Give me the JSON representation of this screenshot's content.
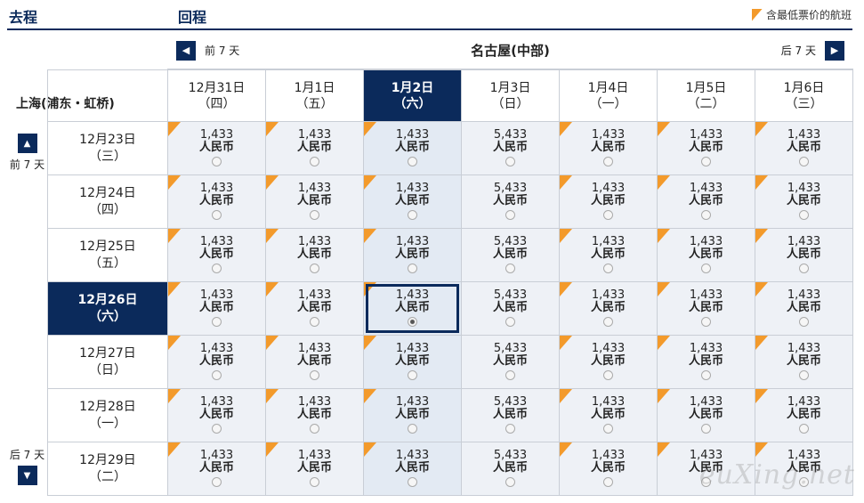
{
  "header": {
    "outbound": "去程",
    "return": "回程",
    "legend": "含最低票价的航班"
  },
  "nav": {
    "prev_label": "前 7 天",
    "next_label": "后 7 天",
    "city": "名古屋(中部)"
  },
  "origin": "上海(浦东・虹桥)",
  "vnav": {
    "prev_label": "前 7 天",
    "next_label": "后 7 天"
  },
  "currency": "人民币",
  "columns": [
    {
      "date": "12月31日",
      "dow": "（四）"
    },
    {
      "date": "1月1日",
      "dow": "（五）"
    },
    {
      "date": "1月2日",
      "dow": "（六）"
    },
    {
      "date": "1月3日",
      "dow": "（日）"
    },
    {
      "date": "1月4日",
      "dow": "（一）"
    },
    {
      "date": "1月5日",
      "dow": "（二）"
    },
    {
      "date": "1月6日",
      "dow": "（三）"
    }
  ],
  "rows": [
    {
      "date": "12月23日",
      "dow": "（三）",
      "prices": [
        "1,433",
        "1,433",
        "1,433",
        "5,433",
        "1,433",
        "1,433",
        "1,433"
      ]
    },
    {
      "date": "12月24日",
      "dow": "（四）",
      "prices": [
        "1,433",
        "1,433",
        "1,433",
        "5,433",
        "1,433",
        "1,433",
        "1,433"
      ]
    },
    {
      "date": "12月25日",
      "dow": "（五）",
      "prices": [
        "1,433",
        "1,433",
        "1,433",
        "5,433",
        "1,433",
        "1,433",
        "1,433"
      ]
    },
    {
      "date": "12月26日",
      "dow": "（六）",
      "prices": [
        "1,433",
        "1,433",
        "1,433",
        "5,433",
        "1,433",
        "1,433",
        "1,433"
      ]
    },
    {
      "date": "12月27日",
      "dow": "（日）",
      "prices": [
        "1,433",
        "1,433",
        "1,433",
        "5,433",
        "1,433",
        "1,433",
        "1,433"
      ]
    },
    {
      "date": "12月28日",
      "dow": "（一）",
      "prices": [
        "1,433",
        "1,433",
        "1,433",
        "5,433",
        "1,433",
        "1,433",
        "1,433"
      ]
    },
    {
      "date": "12月29日",
      "dow": "（二）",
      "prices": [
        "1,433",
        "1,433",
        "1,433",
        "5,433",
        "1,433",
        "1,433",
        "1,433"
      ]
    }
  ],
  "lowest_flags": [
    true,
    true,
    true,
    false,
    true,
    true,
    true
  ],
  "selected": {
    "row": 3,
    "col": 2
  },
  "watermark": "euXing.net",
  "colors": {
    "navy": "#0b2a5b",
    "orange": "#f39a2b"
  },
  "icons": {
    "nav_prev": "chevron-left-icon",
    "nav_next": "chevron-right-icon",
    "vnav_up": "chevron-up-icon",
    "vnav_down": "chevron-down-icon"
  }
}
